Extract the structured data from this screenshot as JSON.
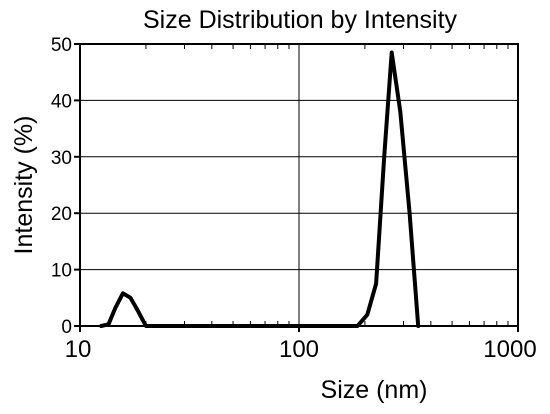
{
  "chart_data": {
    "type": "line",
    "title": "Size Distribution by Intensity",
    "xlabel": "Size (nm)",
    "ylabel": "Intensity (%)",
    "xscale": "log",
    "xlim": [
      10,
      1000
    ],
    "ylim": [
      0,
      50
    ],
    "grid": true,
    "x_ticks": [
      10,
      100,
      1000
    ],
    "x_tick_labels": [
      "10",
      "100",
      "1000"
    ],
    "y_ticks": [
      0,
      10,
      20,
      30,
      40,
      50
    ],
    "y_tick_labels": [
      "0",
      "10",
      "20",
      "30",
      "40",
      "50"
    ],
    "series": [
      {
        "color": "#000000",
        "x": [
          12.5,
          13.5,
          14.5,
          15.7,
          17.0,
          18.5,
          20.0,
          185,
          205,
          225,
          245,
          265,
          290,
          320,
          350
        ],
        "y": [
          0,
          0.3,
          3.2,
          5.8,
          5.0,
          2.5,
          0,
          0,
          2,
          7.5,
          30,
          48.5,
          38,
          20,
          0
        ]
      }
    ]
  }
}
